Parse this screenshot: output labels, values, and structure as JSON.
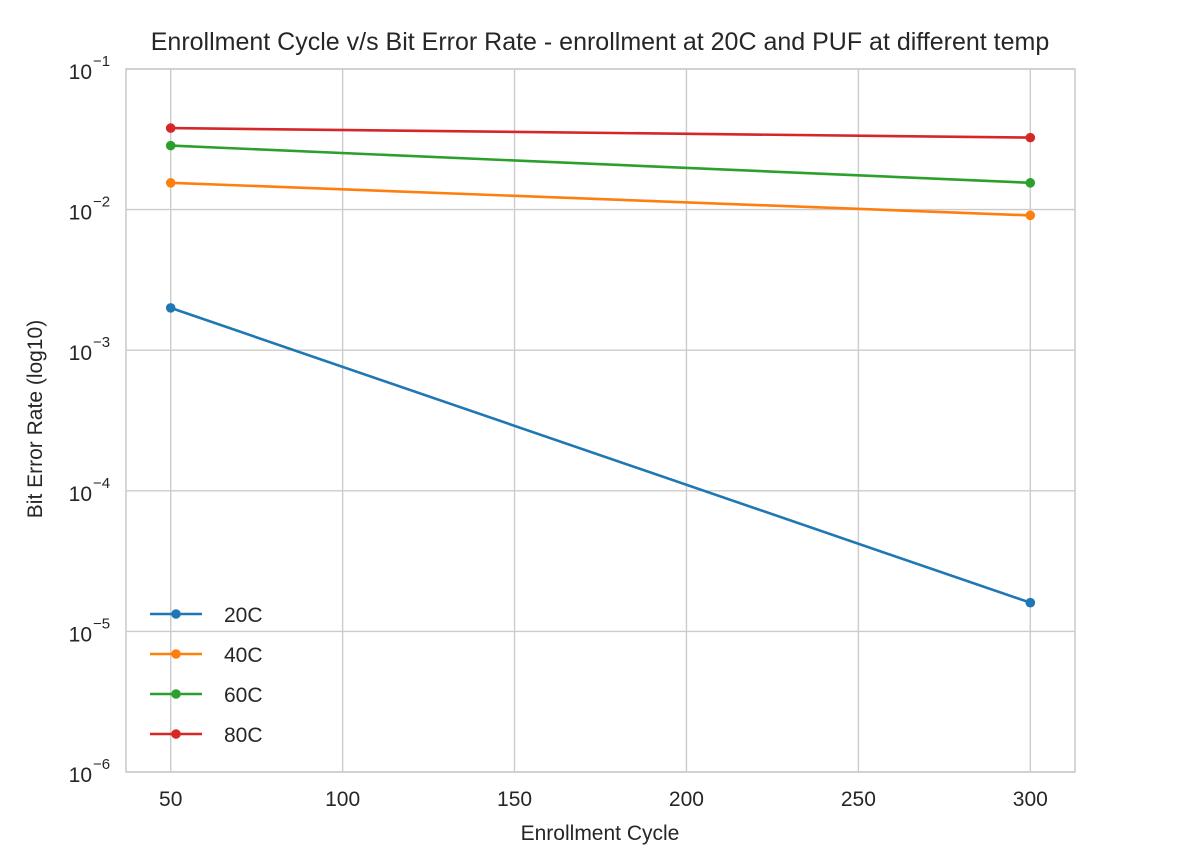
{
  "chart_data": {
    "type": "line",
    "title": "Enrollment Cycle v/s Bit Error Rate - enrollment at 20C and PUF at different temp",
    "xlabel": "Enrollment Cycle",
    "ylabel": "Bit Error Rate (log10)",
    "xlim": [
      37,
      313
    ],
    "ylim": [
      1e-06,
      0.1
    ],
    "yscale": "log",
    "x_ticks": [
      50,
      100,
      150,
      200,
      250,
      300
    ],
    "y_ticks": [
      {
        "base": "10",
        "exp": "−1",
        "value": 0.1
      },
      {
        "base": "10",
        "exp": "−2",
        "value": 0.01
      },
      {
        "base": "10",
        "exp": "−3",
        "value": 0.001
      },
      {
        "base": "10",
        "exp": "−4",
        "value": 0.0001
      },
      {
        "base": "10",
        "exp": "−5",
        "value": 1e-05
      },
      {
        "base": "10",
        "exp": "−6",
        "value": 1e-06
      }
    ],
    "grid": true,
    "legend_position": "lower-left",
    "x": [
      50,
      300
    ],
    "series": [
      {
        "name": "20C",
        "values": [
          0.002,
          1.6e-05
        ],
        "color": "#1f77b4"
      },
      {
        "name": "40C",
        "values": [
          0.0155,
          0.0091
        ],
        "color": "#ff7f0e"
      },
      {
        "name": "60C",
        "values": [
          0.0285,
          0.0155
        ],
        "color": "#2ca02c"
      },
      {
        "name": "80C",
        "values": [
          0.038,
          0.0325
        ],
        "color": "#d62728"
      }
    ]
  }
}
